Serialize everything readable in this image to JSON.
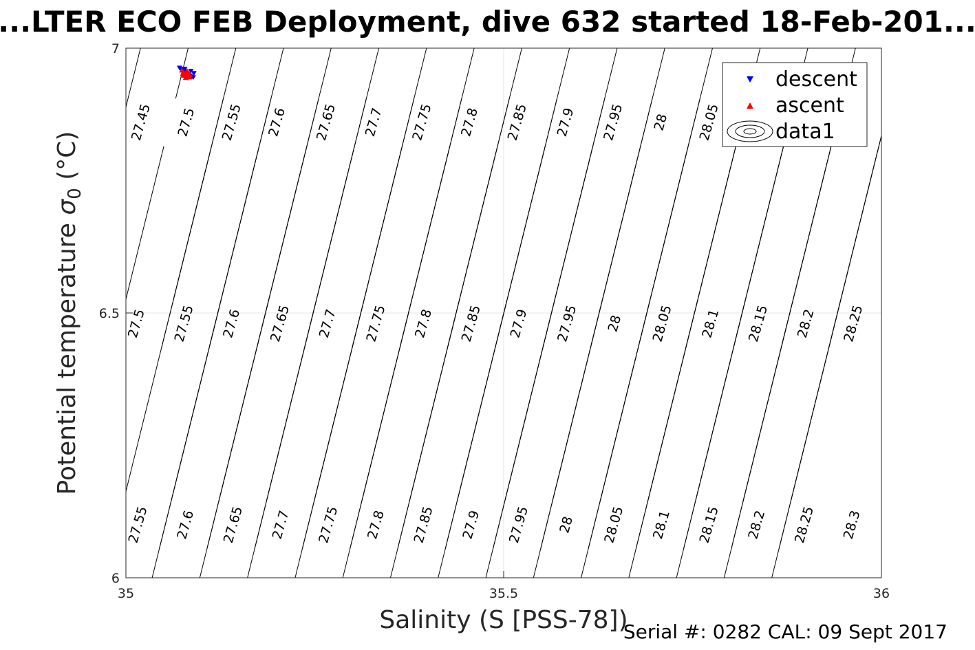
{
  "chart_data": {
    "type": "scatter",
    "title": "...LTER ECO FEB Deployment, dive 632 started 18-Feb-201...",
    "xlabel": "Salinity (S [PSS-78])",
    "ylabel_main": "Potential temperature ",
    "ylabel_sigma": "σ",
    "ylabel_sub": "0",
    "ylabel_unit": " (°C)",
    "xlim": [
      35,
      36
    ],
    "ylim": [
      6,
      7
    ],
    "xticks": [
      {
        "value": 35,
        "label": "35"
      },
      {
        "value": 35.5,
        "label": "35.5"
      },
      {
        "value": 36,
        "label": "36"
      }
    ],
    "yticks": [
      {
        "value": 6,
        "label": "6"
      },
      {
        "value": 6.5,
        "label": "6.5"
      },
      {
        "value": 7,
        "label": "7"
      }
    ],
    "grid": true,
    "legend_position": "top-right",
    "contour_levels": [
      27.45,
      27.5,
      27.55,
      27.6,
      27.65,
      27.7,
      27.75,
      27.8,
      27.85,
      27.9,
      27.95,
      28.0,
      28.05,
      28.1,
      28.15,
      28.2,
      28.25,
      28.3
    ],
    "contour_labels": [
      {
        "text": "27.45",
        "s": 35.02,
        "t": 6.86
      },
      {
        "text": "27.5",
        "s": 35.08,
        "t": 6.86
      },
      {
        "text": "27.55",
        "s": 35.14,
        "t": 6.86
      },
      {
        "text": "27.6",
        "s": 35.2,
        "t": 6.86
      },
      {
        "text": "27.65",
        "s": 35.265,
        "t": 6.86
      },
      {
        "text": "27.7",
        "s": 35.328,
        "t": 6.86
      },
      {
        "text": "27.75",
        "s": 35.392,
        "t": 6.86
      },
      {
        "text": "27.8",
        "s": 35.455,
        "t": 6.86
      },
      {
        "text": "27.85",
        "s": 35.518,
        "t": 6.86
      },
      {
        "text": "27.9",
        "s": 35.582,
        "t": 6.86
      },
      {
        "text": "27.95",
        "s": 35.645,
        "t": 6.86
      },
      {
        "text": "28",
        "s": 35.708,
        "t": 6.86
      },
      {
        "text": "28.05",
        "s": 35.772,
        "t": 6.86
      },
      {
        "text": "27.5",
        "s": 35.014,
        "t": 6.48
      },
      {
        "text": "27.55",
        "s": 35.077,
        "t": 6.48
      },
      {
        "text": "27.6",
        "s": 35.14,
        "t": 6.48
      },
      {
        "text": "27.65",
        "s": 35.204,
        "t": 6.48
      },
      {
        "text": "27.7",
        "s": 35.267,
        "t": 6.48
      },
      {
        "text": "27.75",
        "s": 35.331,
        "t": 6.48
      },
      {
        "text": "27.8",
        "s": 35.394,
        "t": 6.48
      },
      {
        "text": "27.85",
        "s": 35.457,
        "t": 6.48
      },
      {
        "text": "27.9",
        "s": 35.52,
        "t": 6.48
      },
      {
        "text": "27.95",
        "s": 35.584,
        "t": 6.48
      },
      {
        "text": "28",
        "s": 35.647,
        "t": 6.48
      },
      {
        "text": "28.05",
        "s": 35.71,
        "t": 6.48
      },
      {
        "text": "28.1",
        "s": 35.774,
        "t": 6.48
      },
      {
        "text": "28.15",
        "s": 35.837,
        "t": 6.48
      },
      {
        "text": "28.2",
        "s": 35.9,
        "t": 6.48
      },
      {
        "text": "28.25",
        "s": 35.963,
        "t": 6.48
      },
      {
        "text": "27.55",
        "s": 35.016,
        "t": 6.1
      },
      {
        "text": "27.6",
        "s": 35.079,
        "t": 6.1
      },
      {
        "text": "27.65",
        "s": 35.142,
        "t": 6.1
      },
      {
        "text": "27.7",
        "s": 35.205,
        "t": 6.1
      },
      {
        "text": "27.75",
        "s": 35.268,
        "t": 6.1
      },
      {
        "text": "27.8",
        "s": 35.331,
        "t": 6.1
      },
      {
        "text": "27.85",
        "s": 35.394,
        "t": 6.1
      },
      {
        "text": "27.9",
        "s": 35.457,
        "t": 6.1
      },
      {
        "text": "27.95",
        "s": 35.52,
        "t": 6.1
      },
      {
        "text": "28",
        "s": 35.583,
        "t": 6.1
      },
      {
        "text": "28.05",
        "s": 35.646,
        "t": 6.1
      },
      {
        "text": "28.1",
        "s": 35.709,
        "t": 6.1
      },
      {
        "text": "28.15",
        "s": 35.772,
        "t": 6.1
      },
      {
        "text": "28.2",
        "s": 35.835,
        "t": 6.1
      },
      {
        "text": "28.25",
        "s": 35.898,
        "t": 6.1
      },
      {
        "text": "28.3",
        "s": 35.961,
        "t": 6.1
      }
    ],
    "series": [
      {
        "name": "descent",
        "marker": "triangle-down",
        "color": "#0000ff",
        "points": [
          [
            35.071,
            6.963
          ],
          [
            35.073,
            6.96
          ],
          [
            35.075,
            6.958
          ],
          [
            35.077,
            6.956
          ],
          [
            35.079,
            6.954
          ],
          [
            35.081,
            6.952
          ],
          [
            35.083,
            6.95
          ],
          [
            35.085,
            6.948
          ],
          [
            35.087,
            6.946
          ],
          [
            35.089,
            6.945
          ],
          [
            35.09,
            6.953
          ],
          [
            35.086,
            6.957
          ],
          [
            35.078,
            6.961
          ],
          [
            35.082,
            6.944
          ]
        ]
      },
      {
        "name": "ascent",
        "marker": "triangle-up",
        "color": "#ff0000",
        "points": [
          [
            35.074,
            6.958
          ],
          [
            35.076,
            6.955
          ],
          [
            35.078,
            6.952
          ],
          [
            35.08,
            6.95
          ],
          [
            35.082,
            6.947
          ],
          [
            35.084,
            6.945
          ],
          [
            35.079,
            6.944
          ],
          [
            35.077,
            6.948
          ],
          [
            35.081,
            6.957
          ],
          [
            35.083,
            6.953
          ],
          [
            35.075,
            6.951
          ],
          [
            35.085,
            6.949
          ]
        ]
      },
      {
        "name": "data1",
        "marker": "contour",
        "color": "#000000",
        "points": []
      }
    ]
  },
  "footer": {
    "serial": "Serial #: 0282  CAL: 09 Sept 2017"
  }
}
